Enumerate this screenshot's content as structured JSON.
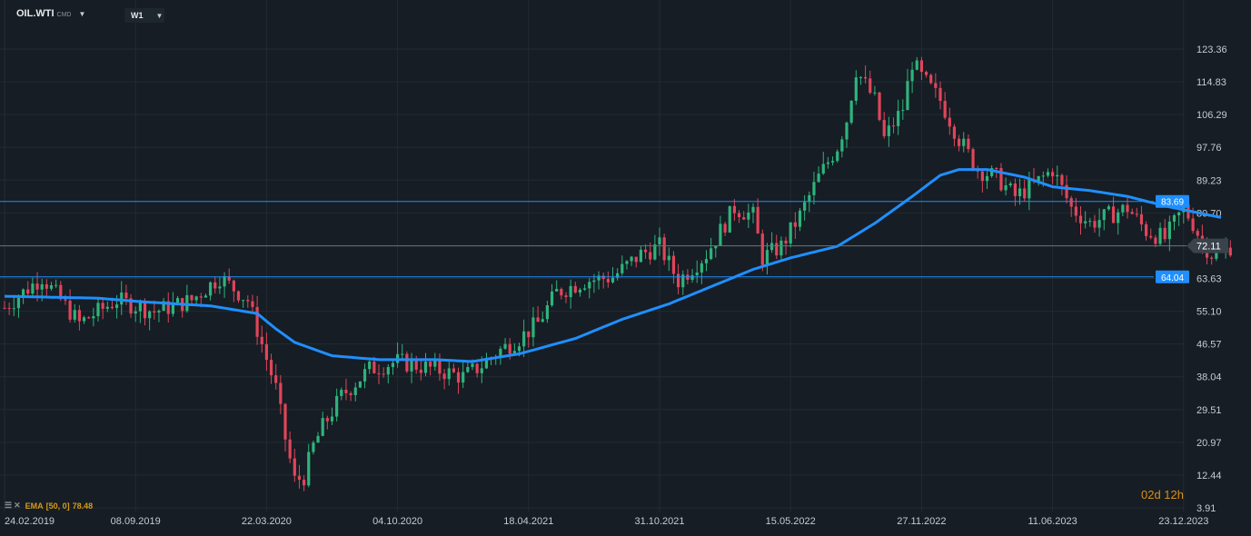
{
  "header": {
    "symbol": "OIL.WTI",
    "symbol_type": "CMD",
    "timeframe": "W1"
  },
  "indicator": {
    "label": "EMA",
    "params": "[50,  0]",
    "value": "78.48"
  },
  "countdown": "02d 12h",
  "colors": {
    "background": "#161d24",
    "grid": "#222b33",
    "up": "#2fb37c",
    "down": "#e0455a",
    "ema": "#1f8fff",
    "hline": "#1f8fff",
    "price_line": "#6a737c",
    "axis_text": "#c6cbd0"
  },
  "chart_data": {
    "type": "candlestick",
    "y_ticks": [
      "123.36",
      "114.83",
      "106.29",
      "97.76",
      "89.23",
      "80.70",
      "72.11",
      "63.63",
      "55.10",
      "46.57",
      "38.04",
      "29.51",
      "20.97",
      "12.44",
      "3.91"
    ],
    "ylim": [
      3.91,
      123.36
    ],
    "x_ticks": [
      "24.02.2019",
      "08.09.2019",
      "22.03.2020",
      "04.10.2020",
      "18.04.2021",
      "31.10.2021",
      "15.05.2022",
      "27.11.2022",
      "11.06.2023",
      "23.12.2023"
    ],
    "horizontal_lines": [
      {
        "label": "83.69",
        "value": 83.69
      },
      {
        "label": "64.04",
        "value": 64.04
      }
    ],
    "current_price": {
      "label": "72.11",
      "value": 72.11
    },
    "ema_period": 50,
    "ema_points": [
      [
        0,
        59
      ],
      [
        20,
        58.5
      ],
      [
        30,
        57.5
      ],
      [
        44,
        56.5
      ],
      [
        54,
        54.5
      ],
      [
        58,
        50.5
      ],
      [
        62,
        47
      ],
      [
        70,
        43.5
      ],
      [
        80,
        42.5
      ],
      [
        92,
        42.5
      ],
      [
        100,
        42
      ],
      [
        110,
        44
      ],
      [
        122,
        48
      ],
      [
        132,
        53
      ],
      [
        142,
        57
      ],
      [
        152,
        62
      ],
      [
        160,
        66
      ],
      [
        168,
        69
      ],
      [
        178,
        72
      ],
      [
        186,
        78
      ],
      [
        194,
        85
      ],
      [
        200,
        90.5
      ],
      [
        204,
        92
      ],
      [
        210,
        92
      ],
      [
        218,
        90
      ],
      [
        224,
        87.5
      ],
      [
        232,
        86.5
      ],
      [
        240,
        85
      ],
      [
        248,
        82.5
      ],
      [
        256,
        80.5
      ],
      [
        260,
        79.5
      ]
    ],
    "price_points": [
      [
        0,
        56
      ],
      [
        8,
        64
      ],
      [
        16,
        52
      ],
      [
        24,
        58
      ],
      [
        32,
        55
      ],
      [
        40,
        58
      ],
      [
        46,
        64
      ],
      [
        52,
        58
      ],
      [
        58,
        35
      ],
      [
        60,
        22
      ],
      [
        62,
        11
      ],
      [
        64,
        12
      ],
      [
        66,
        20
      ],
      [
        68,
        25
      ],
      [
        72,
        33
      ],
      [
        78,
        40
      ],
      [
        84,
        42
      ],
      [
        92,
        40
      ],
      [
        98,
        38
      ],
      [
        102,
        41
      ],
      [
        106,
        45
      ],
      [
        110,
        48
      ],
      [
        114,
        52
      ],
      [
        118,
        60
      ],
      [
        124,
        63
      ],
      [
        130,
        64
      ],
      [
        136,
        70
      ],
      [
        140,
        72
      ],
      [
        144,
        63
      ],
      [
        150,
        70
      ],
      [
        156,
        82
      ],
      [
        160,
        80
      ],
      [
        162,
        69
      ],
      [
        166,
        72
      ],
      [
        170,
        80
      ],
      [
        174,
        90
      ],
      [
        178,
        98
      ],
      [
        180,
        105
      ],
      [
        182,
        118
      ],
      [
        186,
        110
      ],
      [
        188,
        100
      ],
      [
        192,
        108
      ],
      [
        194,
        120
      ],
      [
        196,
        116
      ],
      [
        200,
        110
      ],
      [
        204,
        100
      ],
      [
        208,
        92
      ],
      [
        212,
        90
      ],
      [
        216,
        85
      ],
      [
        220,
        88
      ],
      [
        224,
        92
      ],
      [
        228,
        82
      ],
      [
        232,
        78
      ],
      [
        236,
        80
      ],
      [
        240,
        82
      ],
      [
        244,
        76
      ],
      [
        248,
        74
      ],
      [
        252,
        82
      ],
      [
        254,
        78
      ],
      [
        256,
        73
      ],
      [
        258,
        70
      ],
      [
        260,
        70
      ],
      [
        262,
        72
      ]
    ],
    "candle_count": 263,
    "x_tick_spacing_weeks": 28
  }
}
